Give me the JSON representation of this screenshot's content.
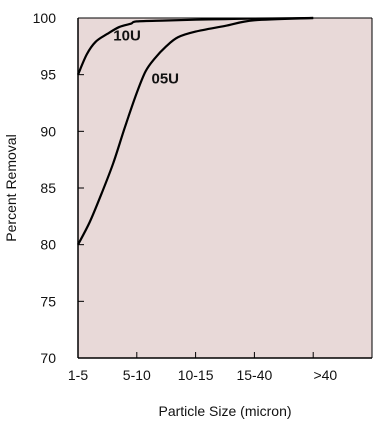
{
  "chart_data": {
    "type": "line",
    "title": "",
    "xlabel": "Particle Size (micron)",
    "ylabel": "Percent Removal",
    "categories": [
      "1-5",
      "5-10",
      "10-15",
      "15-40",
      ">40"
    ],
    "ylim": [
      70,
      100
    ],
    "yticks": [
      70,
      75,
      80,
      85,
      90,
      95,
      100
    ],
    "grid": false,
    "background_color": "#e8d9d8",
    "line_color": "#000000",
    "series": [
      {
        "name": "10U",
        "points": [
          [
            0,
            95.0
          ],
          [
            0.15,
            96.8
          ],
          [
            0.3,
            97.9
          ],
          [
            0.5,
            98.6
          ],
          [
            0.7,
            99.2
          ],
          [
            0.9,
            99.5
          ],
          [
            1.0,
            99.7
          ],
          [
            1.5,
            99.78
          ],
          [
            2.0,
            99.85
          ],
          [
            2.5,
            99.9
          ],
          [
            3.0,
            99.95
          ],
          [
            3.5,
            99.97
          ],
          [
            4.0,
            100.0
          ]
        ]
      },
      {
        "name": "05U",
        "points": [
          [
            0,
            80.0
          ],
          [
            0.2,
            82.0
          ],
          [
            0.4,
            84.5
          ],
          [
            0.6,
            87.2
          ],
          [
            0.8,
            90.4
          ],
          [
            1.0,
            93.4
          ],
          [
            1.15,
            95.3
          ],
          [
            1.3,
            96.4
          ],
          [
            1.5,
            97.5
          ],
          [
            1.7,
            98.3
          ],
          [
            2.0,
            98.8
          ],
          [
            2.5,
            99.3
          ],
          [
            3.0,
            99.8
          ],
          [
            4.0,
            100.0
          ]
        ]
      }
    ]
  }
}
